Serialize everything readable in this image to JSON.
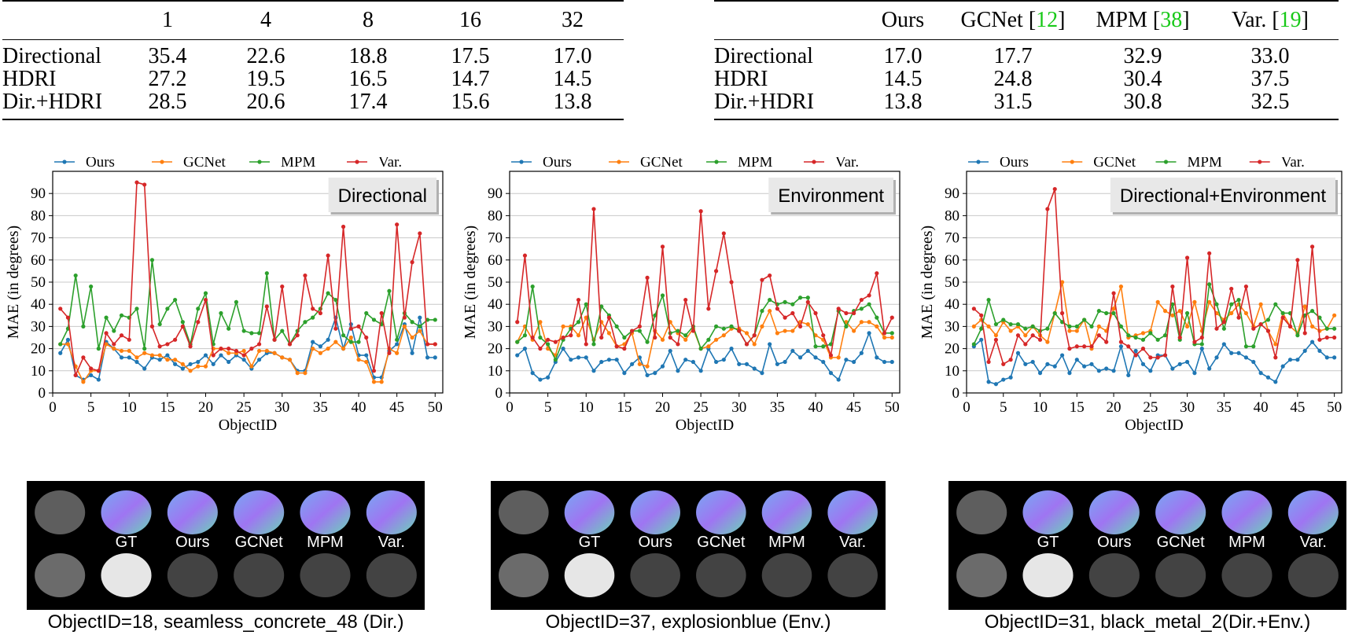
{
  "table_left": {
    "columns": [
      "",
      "1",
      "4",
      "8",
      "16",
      "32"
    ],
    "rows": [
      {
        "label": "Directional",
        "values": [
          "35.4",
          "22.6",
          "18.8",
          "17.5",
          "17.0"
        ]
      },
      {
        "label": "HDRI",
        "values": [
          "27.2",
          "19.5",
          "16.5",
          "14.7",
          "14.5"
        ]
      },
      {
        "label": "Dir.+HDRI",
        "values": [
          "28.5",
          "20.6",
          "17.4",
          "15.6",
          "13.8"
        ]
      }
    ]
  },
  "table_right": {
    "columns": [
      {
        "name": "",
        "ref": ""
      },
      {
        "name": "Ours",
        "ref": ""
      },
      {
        "name": "GCNet",
        "ref": "12"
      },
      {
        "name": "MPM",
        "ref": "38"
      },
      {
        "name": "Var.",
        "ref": "19"
      }
    ],
    "rows": [
      {
        "label": "Directional",
        "values": [
          "17.0",
          "17.7",
          "32.9",
          "33.0"
        ]
      },
      {
        "label": "HDRI",
        "values": [
          "14.5",
          "24.8",
          "30.4",
          "37.5"
        ]
      },
      {
        "label": "Dir.+HDRI",
        "values": [
          "13.8",
          "31.5",
          "30.8",
          "32.5"
        ]
      }
    ],
    "bold_column": 0
  },
  "colors": {
    "ours": "#1f77b4",
    "gcnet": "#ff7f0e",
    "mpm": "#2ca02c",
    "var": "#d62728"
  },
  "chart_data": [
    {
      "type": "line",
      "title": "Directional",
      "xlabel": "ObjectID",
      "ylabel": "MAE (in degrees)",
      "xlim": [
        0,
        51
      ],
      "ylim": [
        0,
        100
      ],
      "xticks": [
        0,
        5,
        10,
        15,
        20,
        25,
        30,
        35,
        40,
        45,
        50
      ],
      "yticks": [
        0,
        10,
        20,
        30,
        40,
        50,
        60,
        70,
        80,
        90
      ],
      "grid": "y",
      "legend": "top",
      "x_start": 1,
      "series": [
        {
          "name": "Ours",
          "color": "#1f77b4",
          "values": [
            18,
            24,
            8,
            6,
            8,
            6,
            23,
            20,
            16,
            16,
            14,
            11,
            16,
            15,
            17,
            13,
            11,
            13,
            14,
            17,
            13,
            17,
            14,
            17,
            15,
            11,
            15,
            18,
            18,
            16,
            15,
            10,
            10,
            23,
            21,
            24,
            34,
            20,
            31,
            17,
            17,
            7,
            7,
            19,
            22,
            31,
            18,
            34,
            16,
            16
          ]
        },
        {
          "name": "GCNet",
          "color": "#ff7f0e",
          "values": [
            22,
            22,
            12,
            5,
            10,
            10,
            22,
            20,
            19,
            19,
            16,
            18,
            17,
            17,
            15,
            15,
            13,
            10,
            12,
            12,
            20,
            20,
            18,
            18,
            19,
            12,
            19,
            19,
            18,
            16,
            15,
            9,
            9,
            20,
            18,
            20,
            23,
            20,
            25,
            15,
            14,
            5,
            5,
            20,
            18,
            30,
            25,
            28,
            22,
            22
          ]
        },
        {
          "name": "MPM",
          "color": "#2ca02c",
          "values": [
            22,
            29,
            53,
            30,
            48,
            20,
            34,
            28,
            35,
            34,
            38,
            20,
            60,
            31,
            38,
            42,
            32,
            22,
            38,
            45,
            22,
            36,
            29,
            41,
            28,
            27,
            27,
            54,
            24,
            28,
            22,
            28,
            32,
            34,
            38,
            45,
            42,
            26,
            23,
            23,
            36,
            33,
            31,
            46,
            24,
            36,
            32,
            30,
            33,
            33
          ]
        },
        {
          "name": "Var.",
          "color": "#d62728",
          "values": [
            38,
            34,
            8,
            16,
            11,
            10,
            27,
            22,
            26,
            24,
            95,
            94,
            30,
            21,
            22,
            24,
            30,
            21,
            32,
            42,
            17,
            20,
            20,
            19,
            17,
            20,
            22,
            39,
            24,
            48,
            22,
            26,
            53,
            38,
            36,
            62,
            29,
            75,
            29,
            30,
            25,
            10,
            36,
            18,
            76,
            34,
            59,
            72,
            22,
            22
          ]
        }
      ]
    },
    {
      "type": "line",
      "title": "Environment",
      "xlabel": "ObjectID",
      "ylabel": "MAE (in degrees)",
      "xlim": [
        0,
        51
      ],
      "ylim": [
        0,
        100
      ],
      "xticks": [
        0,
        5,
        10,
        15,
        20,
        25,
        30,
        35,
        40,
        45,
        50
      ],
      "yticks": [
        0,
        10,
        20,
        30,
        40,
        50,
        60,
        70,
        80,
        90
      ],
      "grid": "y",
      "legend": "top",
      "x_start": 1,
      "series": [
        {
          "name": "Ours",
          "color": "#1f77b4",
          "values": [
            17,
            20,
            9,
            6,
            7,
            14,
            20,
            15,
            16,
            16,
            10,
            14,
            15,
            15,
            9,
            13,
            16,
            8,
            9,
            12,
            19,
            10,
            15,
            14,
            10,
            20,
            14,
            15,
            20,
            13,
            13,
            11,
            9,
            22,
            13,
            14,
            19,
            16,
            19,
            16,
            14,
            9,
            6,
            15,
            14,
            18,
            27,
            16,
            14,
            14
          ]
        },
        {
          "name": "GCNet",
          "color": "#ff7f0e",
          "values": [
            23,
            30,
            24,
            32,
            20,
            17,
            30,
            30,
            26,
            34,
            24,
            32,
            27,
            21,
            22,
            27,
            13,
            12,
            28,
            24,
            32,
            27,
            24,
            29,
            20,
            21,
            24,
            26,
            29,
            29,
            27,
            22,
            30,
            37,
            27,
            28,
            28,
            32,
            31,
            26,
            24,
            16,
            16,
            32,
            28,
            32,
            32,
            30,
            25,
            25
          ]
        },
        {
          "name": "MPM",
          "color": "#2ca02c",
          "values": [
            23,
            26,
            48,
            25,
            22,
            15,
            24,
            29,
            32,
            40,
            22,
            39,
            35,
            30,
            25,
            28,
            28,
            23,
            35,
            44,
            27,
            28,
            26,
            30,
            20,
            24,
            30,
            29,
            30,
            28,
            22,
            26,
            37,
            42,
            40,
            41,
            40,
            43,
            43,
            21,
            21,
            22,
            37,
            30,
            37,
            38,
            40,
            34,
            27,
            27
          ]
        },
        {
          "name": "Var.",
          "color": "#d62728",
          "values": [
            32,
            62,
            25,
            20,
            24,
            23,
            25,
            26,
            42,
            22,
            83,
            25,
            34,
            21,
            20,
            28,
            30,
            52,
            25,
            66,
            25,
            22,
            42,
            28,
            82,
            38,
            55,
            72,
            50,
            28,
            22,
            26,
            51,
            53,
            38,
            34,
            36,
            30,
            41,
            36,
            26,
            17,
            38,
            36,
            36,
            42,
            44,
            54,
            27,
            34
          ]
        }
      ]
    },
    {
      "type": "line",
      "title": "Directional+Environment",
      "xlabel": "ObjectID",
      "ylabel": "MAE (in degrees)",
      "xlim": [
        0,
        51
      ],
      "ylim": [
        0,
        100
      ],
      "xticks": [
        0,
        5,
        10,
        15,
        20,
        25,
        30,
        35,
        40,
        45,
        50
      ],
      "yticks": [
        0,
        10,
        20,
        30,
        40,
        50,
        60,
        70,
        80,
        90
      ],
      "grid": "y",
      "legend": "top",
      "x_start": 1,
      "series": [
        {
          "name": "Ours",
          "color": "#1f77b4",
          "values": [
            21,
            24,
            5,
            4,
            6,
            7,
            18,
            13,
            14,
            9,
            13,
            12,
            17,
            9,
            15,
            12,
            13,
            10,
            11,
            10,
            21,
            8,
            19,
            13,
            10,
            17,
            17,
            11,
            13,
            14,
            9,
            20,
            11,
            16,
            22,
            18,
            18,
            16,
            14,
            9,
            7,
            5,
            12,
            15,
            15,
            19,
            23,
            19,
            16,
            16
          ]
        },
        {
          "name": "GCNet",
          "color": "#ff7f0e",
          "values": [
            30,
            33,
            30,
            26,
            32,
            28,
            30,
            26,
            30,
            26,
            23,
            36,
            50,
            28,
            28,
            33,
            20,
            30,
            28,
            38,
            48,
            25,
            26,
            27,
            28,
            41,
            37,
            35,
            37,
            30,
            41,
            28,
            41,
            36,
            33,
            36,
            40,
            36,
            30,
            40,
            28,
            22,
            36,
            30,
            27,
            39,
            30,
            28,
            29,
            35
          ]
        },
        {
          "name": "MPM",
          "color": "#2ca02c",
          "values": [
            22,
            29,
            42,
            31,
            33,
            31,
            31,
            29,
            30,
            28,
            29,
            36,
            32,
            30,
            30,
            33,
            30,
            37,
            36,
            36,
            30,
            26,
            25,
            24,
            27,
            24,
            26,
            40,
            24,
            36,
            22,
            22,
            49,
            40,
            29,
            40,
            42,
            21,
            21,
            31,
            33,
            40,
            36,
            36,
            26,
            35,
            37,
            34,
            29,
            29
          ]
        },
        {
          "name": "Var.",
          "color": "#d62728",
          "values": [
            38,
            35,
            14,
            24,
            13,
            15,
            26,
            22,
            26,
            24,
            83,
            92,
            36,
            20,
            21,
            21,
            21,
            26,
            23,
            45,
            23,
            21,
            17,
            20,
            16,
            16,
            17,
            48,
            25,
            61,
            23,
            25,
            63,
            29,
            32,
            47,
            34,
            48,
            29,
            31,
            28,
            16,
            34,
            30,
            60,
            27,
            66,
            24,
            25,
            25
          ]
        }
      ]
    }
  ],
  "thumbs": [
    {
      "labels": [
        "GT",
        "Ours",
        "GCNet",
        "MPM",
        "Var."
      ],
      "caption": "ObjectID=18, seamless_concrete_48 (Dir.)"
    },
    {
      "labels": [
        "GT",
        "Ours",
        "GCNet",
        "MPM",
        "Var."
      ],
      "caption": "ObjectID=37, explosionblue (Env.)"
    },
    {
      "labels": [
        "GT",
        "Ours",
        "GCNet",
        "MPM",
        "Var."
      ],
      "caption": "ObjectID=31, black_metal_2(Dir.+Env.)"
    }
  ]
}
